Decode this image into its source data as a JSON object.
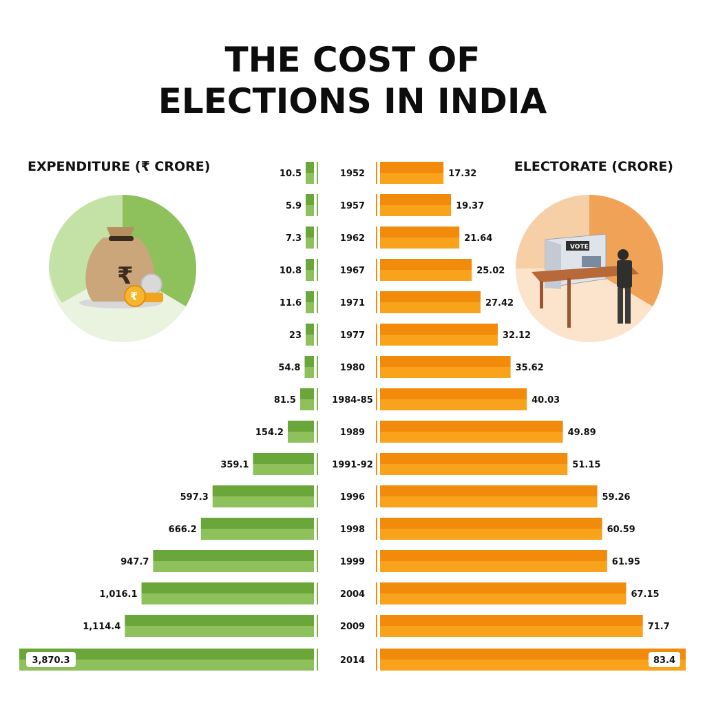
{
  "header": {
    "title_line1": "THE COST OF",
    "title_line2": "ELECTIONS IN INDIA"
  },
  "labels": {
    "expenditure": "EXPENDITURE (₹ CRORE)",
    "electorate": "ELECTORATE (CRORE)"
  },
  "colors": {
    "green_dark": "#6aa63a",
    "green_light": "#8ec15c",
    "orange_dark": "#f28a0c",
    "orange_light": "#f9a21c",
    "axis_green": "#7ab24a",
    "axis_orange": "#f28a0c"
  },
  "icons": {
    "left": "money-bag-with-coins-icon",
    "right": "voting-booth-icon"
  },
  "chart_data": {
    "type": "bar",
    "title": "THE COST OF ELECTIONS IN INDIA",
    "categories": [
      "1952",
      "1957",
      "1962",
      "1967",
      "1971",
      "1977",
      "1980",
      "1984-85",
      "1989",
      "1991-92",
      "1996",
      "1998",
      "1999",
      "2004",
      "2009",
      "2014"
    ],
    "series": [
      {
        "name": "EXPENDITURE (₹ CRORE)",
        "values": [
          10.5,
          5.9,
          7.3,
          10.8,
          11.6,
          23,
          54.8,
          81.5,
          154.2,
          359.1,
          597.3,
          666.2,
          947.7,
          1016.1,
          1114.4,
          3870.3
        ],
        "labels": [
          "10.5",
          "5.9",
          "7.3",
          "10.8",
          "11.6",
          "23",
          "54.8",
          "81.5",
          "154.2",
          "359.1",
          "597.3",
          "666.2",
          "947.7",
          "1,016.1",
          "1,114.4",
          "3,870.3"
        ]
      },
      {
        "name": "ELECTORATE (CRORE)",
        "values": [
          17.32,
          19.37,
          21.64,
          25.02,
          27.42,
          32.12,
          35.62,
          40.03,
          49.89,
          51.15,
          59.26,
          60.59,
          61.95,
          67.15,
          71.7,
          83.4
        ],
        "labels": [
          "17.32",
          "19.37",
          "21.64",
          "25.02",
          "27.42",
          "32.12",
          "35.62",
          "40.03",
          "49.89",
          "51.15",
          "59.26",
          "60.59",
          "61.95",
          "67.15",
          "71.7",
          "83.4"
        ]
      }
    ],
    "orientation": "horizontal-diverging",
    "grid": false,
    "legend": "none"
  }
}
